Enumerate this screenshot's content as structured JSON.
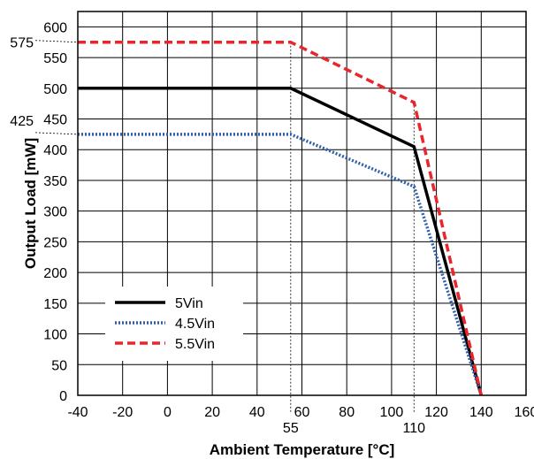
{
  "chart_data": {
    "type": "line",
    "title": "",
    "xlabel": "Ambient Temperature [°C]",
    "ylabel": "Output Load [mW]",
    "xlim": [
      -40,
      160
    ],
    "ylim": [
      0,
      625
    ],
    "x_ticks": [
      -40,
      -20,
      0,
      20,
      40,
      60,
      80,
      100,
      120,
      140,
      160
    ],
    "y_ticks": [
      0,
      50,
      100,
      150,
      200,
      250,
      300,
      350,
      400,
      450,
      500,
      550,
      600
    ],
    "grid": true,
    "legend_position": "bottom-left",
    "series": [
      {
        "name": "5Vin",
        "style": "solid",
        "color": "#000000",
        "x": [
          -40,
          55,
          110,
          140
        ],
        "y": [
          500,
          500,
          405,
          0
        ]
      },
      {
        "name": "4.5Vin",
        "style": "dotted",
        "color": "#2f5fa8",
        "x": [
          -40,
          55,
          110,
          140
        ],
        "y": [
          425,
          425,
          340,
          0
        ]
      },
      {
        "name": "5.5Vin",
        "style": "dashed",
        "color": "#e8262c",
        "x": [
          -40,
          55,
          110,
          140
        ],
        "y": [
          575,
          575,
          477,
          0
        ]
      }
    ],
    "annotations": {
      "x_markers": [
        {
          "value": 55,
          "label": "55"
        },
        {
          "value": 110,
          "label": "110"
        }
      ],
      "y_markers": [
        {
          "value": 575,
          "label": "575"
        },
        {
          "value": 425,
          "label": "425"
        }
      ]
    }
  }
}
